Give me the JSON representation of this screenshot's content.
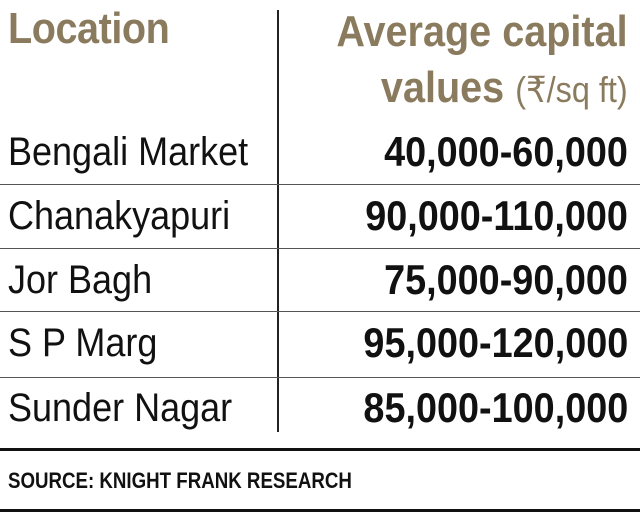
{
  "headers": {
    "location": "Location",
    "values_line1": "Average capital",
    "values_line2": "values",
    "unit": "(₹/sq ft)"
  },
  "rows": [
    {
      "location": "Bengali Market",
      "value": "40,000-60,000"
    },
    {
      "location": "Chanakyapuri",
      "value": "90,000-110,000"
    },
    {
      "location": "Jor Bagh",
      "value": "75,000-90,000"
    },
    {
      "location": "S P Marg",
      "value": "95,000-120,000"
    },
    {
      "location": "Sunder Nagar",
      "value": "85,000-100,000"
    }
  ],
  "source": "SOURCE: KNIGHT FRANK RESEARCH",
  "colors": {
    "header_text": "#8b7b5e",
    "body_text": "#111111"
  }
}
